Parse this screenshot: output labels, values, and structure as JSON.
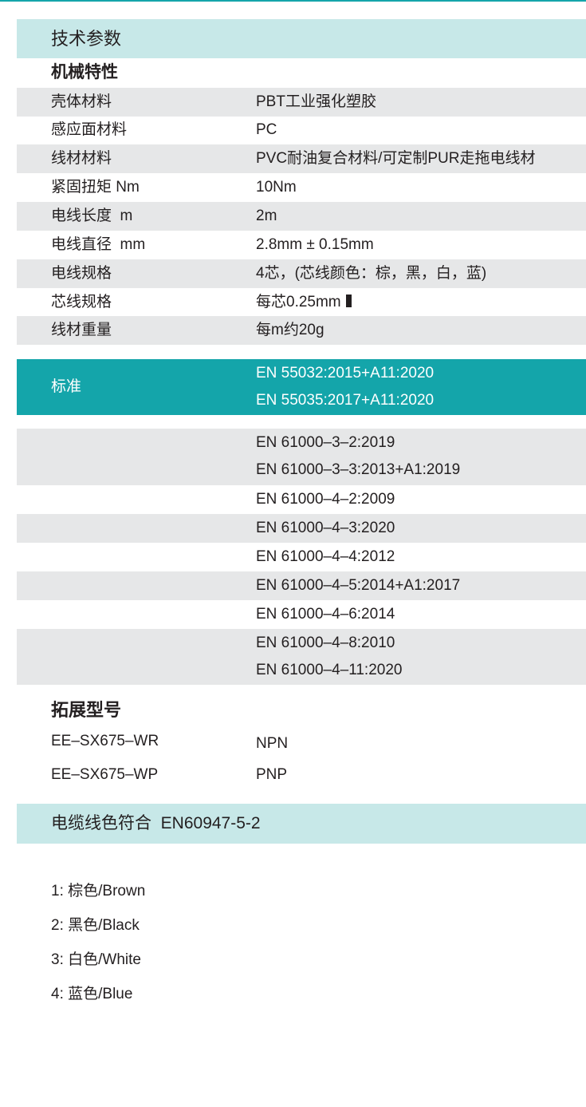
{
  "header": {
    "title": "技术参数"
  },
  "mechanical": {
    "title": "机械特性",
    "rows": [
      {
        "label": "壳体材料",
        "value": "PBT工业强化塑胶"
      },
      {
        "label": "感应面材料",
        "value": "PC"
      },
      {
        "label": "线材材料",
        "value": "PVC耐油复合材料/可定制PUR走拖电线材"
      },
      {
        "label": "紧固扭矩 Nm",
        "value": "10Nm"
      },
      {
        "label": "电线长度  m",
        "value": "2m"
      },
      {
        "label": "电线直径  mm",
        "value": "2.8mm ± 0.15mm"
      },
      {
        "label": "电线规格",
        "value": "4芯，(芯线颜色：棕，黑，白，蓝)"
      },
      {
        "label": "芯线规格",
        "value": "每芯0.25mm"
      },
      {
        "label": "线材重量",
        "value": "每m约20g"
      }
    ]
  },
  "standards": {
    "label": "标准",
    "highlighted": [
      "EN 55032:2015+A11:2020",
      "EN 55035:2017+A11:2020"
    ],
    "list": [
      "EN 61000–3–2:2019",
      "EN 61000–3–3:2013+A1:2019",
      "EN 61000–4–2:2009",
      "EN 61000–4–3:2020",
      "EN 61000–4–4:2012",
      "EN 61000–4–5:2014+A1:2017",
      "EN 61000–4–6:2014",
      "EN 61000–4–8:2010",
      "EN 61000–4–11:2020"
    ]
  },
  "models": {
    "title": "拓展型号",
    "rows": [
      {
        "model": "EE–SX675–WR",
        "type": "NPN"
      },
      {
        "model": "EE–SX675–WP",
        "type": "PNP"
      }
    ]
  },
  "cable": {
    "title": "电缆线色符合  EN60947-5-2",
    "colors": [
      "1: 棕色/Brown",
      "2: 黑色/Black",
      "3: 白色/White",
      "4: 蓝色/Blue"
    ]
  },
  "colors": {
    "teal": "#14a5aa",
    "light_teal": "#c7e8e8",
    "row_gray": "#e6e7e8"
  }
}
